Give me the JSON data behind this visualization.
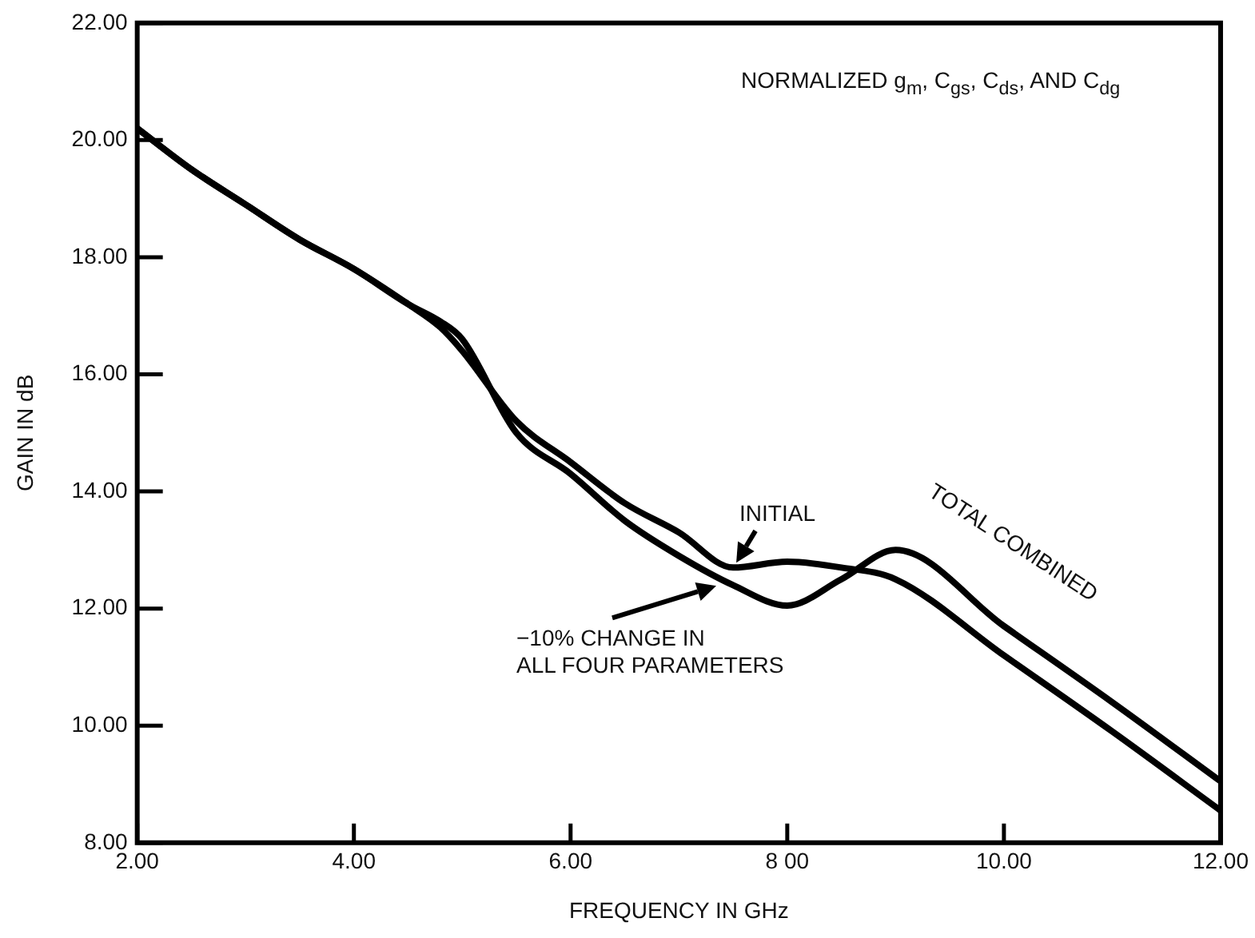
{
  "chart_data": {
    "type": "line",
    "xlabel": "FREQUENCY IN GHz",
    "ylabel": "GAIN IN dB",
    "xlim": [
      2,
      12
    ],
    "ylim": [
      8,
      22
    ],
    "xticks": [
      {
        "value": 2,
        "label": "2.00"
      },
      {
        "value": 4,
        "label": "4.00"
      },
      {
        "value": 6,
        "label": "6.00"
      },
      {
        "value": 8,
        "label": "8 00"
      },
      {
        "value": 10,
        "label": "10.00"
      },
      {
        "value": 12,
        "label": "12.00"
      }
    ],
    "yticks": [
      {
        "value": 8,
        "label": "8.00"
      },
      {
        "value": 10,
        "label": "10.00"
      },
      {
        "value": 12,
        "label": "12.00"
      },
      {
        "value": 14,
        "label": "14.00"
      },
      {
        "value": 16,
        "label": "16.00"
      },
      {
        "value": 18,
        "label": "18.00"
      },
      {
        "value": 20,
        "label": "20.00"
      },
      {
        "value": 22,
        "label": "22.00"
      }
    ],
    "grid": false,
    "legend": false,
    "marker": "none",
    "line_style": "solid",
    "series": [
      {
        "color": "#000000",
        "x": [
          2,
          2.5,
          3,
          3.5,
          4,
          4.5,
          4.8,
          5,
          5.5,
          6,
          6.5,
          7,
          7.5,
          8,
          8.5,
          9,
          10,
          11,
          12
        ],
        "values": [
          20.2,
          19.5,
          18.9,
          18.3,
          17.8,
          17.2,
          16.8,
          16.4,
          15.2,
          14.5,
          13.8,
          13.3,
          12.7,
          12.8,
          12.7,
          12.5,
          11.2,
          9.9,
          8.55
        ]
      },
      {
        "color": "#000000",
        "x": [
          2,
          2.5,
          3,
          3.5,
          4,
          4.5,
          4.8,
          5,
          5.5,
          6,
          6.5,
          7,
          7.5,
          8,
          8.5,
          9,
          10,
          11,
          12
        ],
        "values": [
          20.2,
          19.5,
          18.9,
          18.3,
          17.8,
          17.2,
          16.9,
          16.6,
          15.0,
          14.3,
          13.5,
          12.9,
          12.4,
          12.05,
          12.5,
          13.0,
          11.7,
          10.4,
          9.05
        ]
      }
    ],
    "annotations": [
      "NORMALIZED g$_{m}$, C$_{gs}$, C$_{ds}$, AND C$_{dg}$",
      {
        "text": "INITIAL",
        "x": 7.5,
        "y": 12.7
      },
      {
        "text": "−10% CHANGE IN\nALL FOUR PARAMETERS",
        "x": 7.3,
        "y": 12.55
      },
      "TOTAL COMBINED"
    ]
  }
}
